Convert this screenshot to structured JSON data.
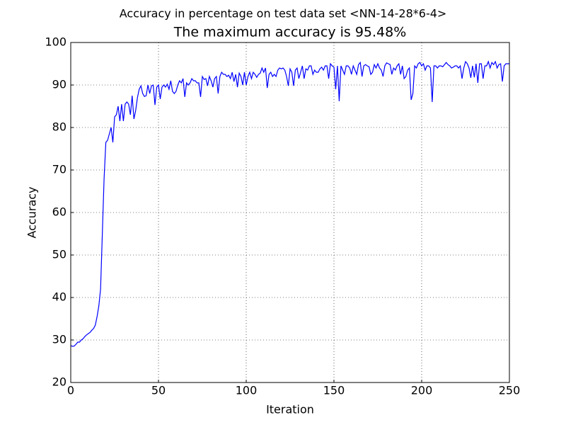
{
  "chart_data": {
    "type": "line",
    "suptitle": "Accuracy in percentage on test data set <NN-14-28*6-4>",
    "title": "The maximum accuracy is 95.48%",
    "x_label": "Iteration",
    "y_label": "Accuracy",
    "xlim": [
      0,
      250
    ],
    "ylim": [
      20,
      100
    ],
    "xticks": [
      0,
      50,
      100,
      150,
      200,
      250
    ],
    "yticks": [
      20,
      30,
      40,
      50,
      60,
      70,
      80,
      90,
      100
    ],
    "grid": true,
    "x": [
      0,
      1,
      2,
      3,
      4,
      5,
      6,
      7,
      8,
      9,
      10,
      11,
      12,
      13,
      14,
      15,
      16,
      17,
      18,
      19,
      20,
      21,
      22,
      23,
      24,
      25,
      26,
      27,
      28,
      29,
      30,
      31,
      32,
      33,
      34,
      35,
      36,
      37,
      38,
      39,
      40,
      41,
      42,
      43,
      44,
      45,
      46,
      47,
      48,
      49,
      50,
      51,
      52,
      53,
      54,
      55,
      56,
      57,
      58,
      59,
      60,
      61,
      62,
      63,
      64,
      65,
      66,
      67,
      68,
      69,
      70,
      71,
      72,
      73,
      74,
      75,
      76,
      77,
      78,
      79,
      80,
      81,
      82,
      83,
      84,
      85,
      86,
      87,
      88,
      89,
      90,
      91,
      92,
      93,
      94,
      95,
      96,
      97,
      98,
      99,
      100,
      101,
      102,
      103,
      104,
      105,
      106,
      107,
      108,
      109,
      110,
      111,
      112,
      113,
      114,
      115,
      116,
      117,
      118,
      119,
      120,
      121,
      122,
      123,
      124,
      125,
      126,
      127,
      128,
      129,
      130,
      131,
      132,
      133,
      134,
      135,
      136,
      137,
      138,
      139,
      140,
      141,
      142,
      143,
      144,
      145,
      146,
      147,
      148,
      149,
      150,
      151,
      152,
      153,
      154,
      155,
      156,
      157,
      158,
      159,
      160,
      161,
      162,
      163,
      164,
      165,
      166,
      167,
      168,
      169,
      170,
      171,
      172,
      173,
      174,
      175,
      176,
      177,
      178,
      179,
      180,
      181,
      182,
      183,
      184,
      185,
      186,
      187,
      188,
      189,
      190,
      191,
      192,
      193,
      194,
      195,
      196,
      197,
      198,
      199,
      200,
      201,
      202,
      203,
      204,
      205,
      206,
      207,
      208,
      209,
      210,
      211,
      212,
      213,
      214,
      215,
      216,
      217,
      218,
      219,
      220,
      221,
      222,
      223,
      224,
      225,
      226,
      227,
      228,
      229,
      230,
      231,
      232,
      233,
      234,
      235,
      236,
      237,
      238,
      239,
      240,
      241,
      242,
      243,
      244,
      245,
      246,
      247,
      248,
      249,
      250
    ],
    "series": [
      {
        "color": "#0000ff",
        "values": [
          28.7,
          28.5,
          28.6,
          29,
          29.5,
          29.5,
          30,
          30.3,
          30.8,
          31.2,
          31.5,
          31.8,
          32.3,
          32.7,
          33.5,
          35.5,
          38,
          42,
          55,
          68,
          76.5,
          77,
          78.5,
          80,
          76.5,
          82.5,
          83,
          85,
          81.5,
          85.5,
          81.5,
          85.5,
          86,
          85.5,
          83,
          87.5,
          82,
          84,
          87,
          89,
          89.8,
          88,
          87.3,
          87.5,
          90,
          88,
          89.8,
          90,
          85.3,
          89.5,
          90,
          86.7,
          89.5,
          90,
          89.5,
          90.2,
          89,
          91,
          88.5,
          88,
          88.5,
          90,
          91,
          90.5,
          91.5,
          87.2,
          90.5,
          90,
          90.5,
          91.5,
          91,
          91,
          90.5,
          90.5,
          87.2,
          92,
          91.3,
          91.5,
          89.8,
          92,
          91,
          89.5,
          91.5,
          92,
          88,
          92,
          93,
          92.5,
          92.5,
          92,
          92.3,
          91.5,
          93,
          90.8,
          92.5,
          89.5,
          92.8,
          92,
          90,
          93,
          90,
          92,
          93,
          91.5,
          93,
          92.5,
          91.8,
          92.5,
          92.8,
          94,
          93,
          94,
          89.3,
          92.5,
          93,
          92,
          92.5,
          92,
          93.5,
          94,
          93.8,
          94,
          93.5,
          92,
          89.8,
          93.8,
          93,
          89.8,
          93.5,
          94,
          91.5,
          93,
          94.5,
          91.5,
          93.8,
          93.5,
          94.5,
          94.5,
          92.5,
          93.5,
          93,
          93,
          93.8,
          94.2,
          93.5,
          94.5,
          94.5,
          91.5,
          95,
          94.5,
          94.2,
          89,
          94.5,
          86.2,
          94.5,
          93.5,
          92.5,
          94.5,
          94.5,
          94,
          92.5,
          94.5,
          93.5,
          92.5,
          94.8,
          95.3,
          92,
          94.5,
          94.8,
          94.5,
          94.3,
          92.5,
          93,
          94.8,
          94,
          95,
          94,
          93.5,
          92,
          94.5,
          95.2,
          95,
          94.8,
          92.5,
          94,
          93.5,
          94.5,
          95,
          92.5,
          94.5,
          91.5,
          92,
          93.5,
          94,
          86.5,
          88,
          94.5,
          94,
          95,
          95.3,
          94.5,
          95,
          93.5,
          94.5,
          94.5,
          94,
          86,
          94.5,
          94.5,
          94,
          94.5,
          94.5,
          94.3,
          94.8,
          95.3,
          94.8,
          94.5,
          94,
          94.2,
          94.5,
          94.5,
          94,
          94.5,
          91.5,
          94,
          95.5,
          95,
          94,
          91.7,
          94.5,
          91.8,
          95,
          90.5,
          95,
          95,
          91.5,
          94.5,
          94.5,
          95.5,
          94,
          95.3,
          94.8,
          95.5,
          94,
          94.8,
          95,
          90.8,
          94.5,
          95,
          95,
          95
        ]
      }
    ]
  }
}
